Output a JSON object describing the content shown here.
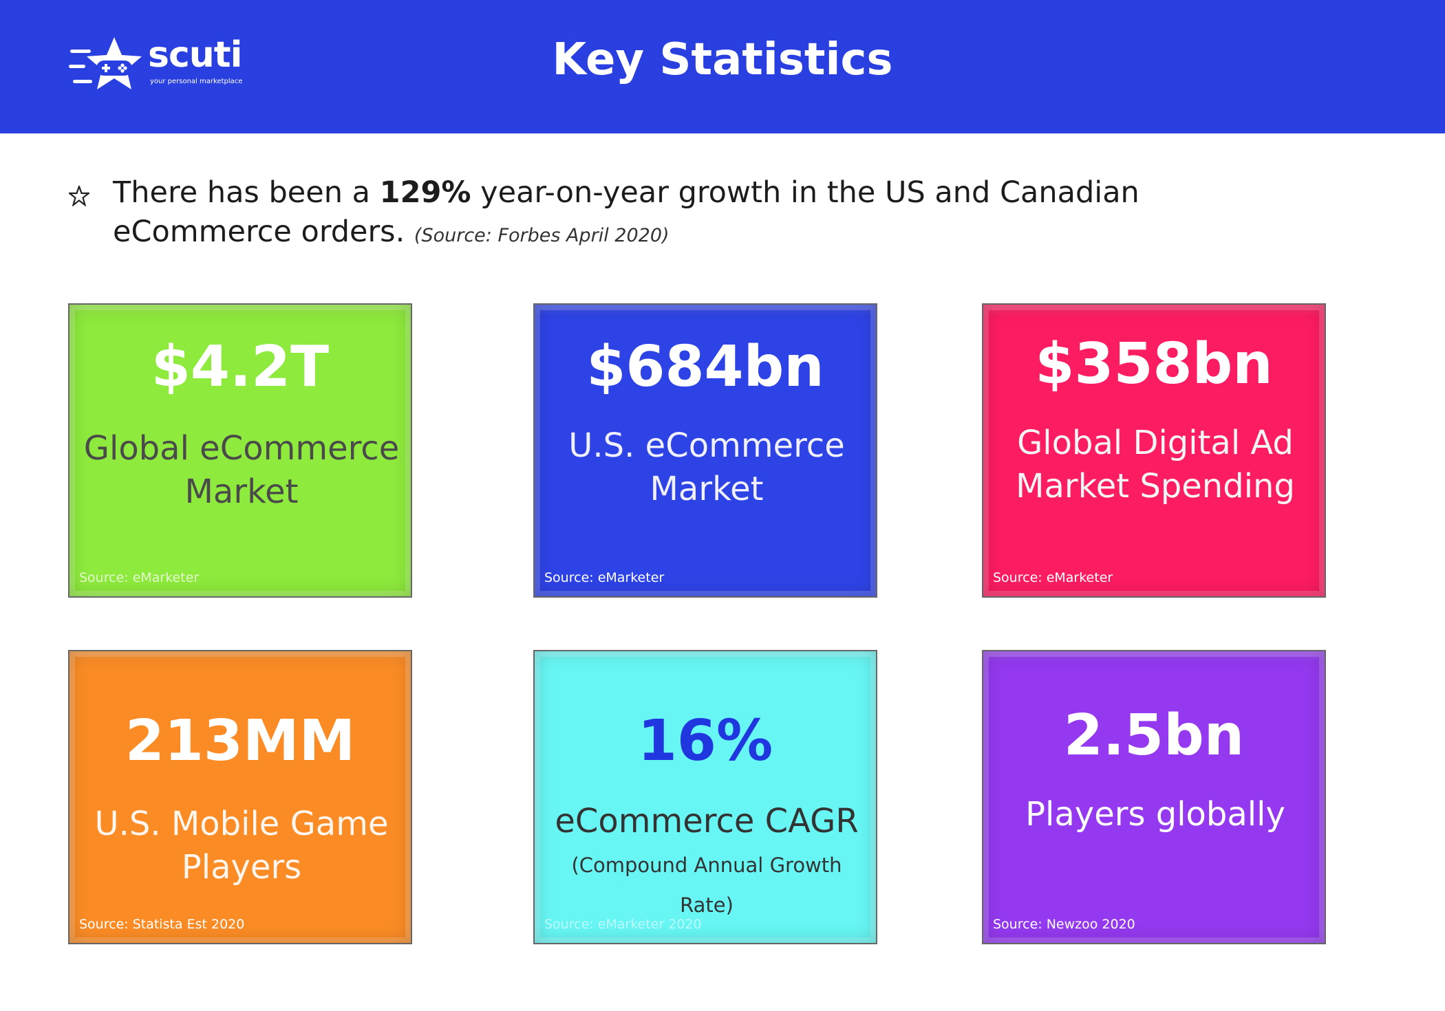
{
  "header": {
    "title": "Key Statistics",
    "logo": {
      "wordmark": "scuti",
      "tagline": "your personal marketplace",
      "icon": "star-gamepad-icon"
    },
    "background_color": "#2a3fdf"
  },
  "statement": {
    "bullet_icon": "star-bullet-icon",
    "text_before": "There has been a ",
    "highlight": "129%",
    "text_after": " year-on-year growth in the US and Canadian eCommerce orders.",
    "source": "(Source: Forbes April 2020)"
  },
  "cards": [
    {
      "value": "$4.2T",
      "label": "Global eCommerce Market",
      "source": "Source: eMarketer",
      "color": "#8eea3c"
    },
    {
      "value": "$684bn",
      "label": "U.S. eCommerce Market",
      "source": "Source: eMarketer",
      "color": "#2e43e6"
    },
    {
      "value": "$358bn",
      "label": "Global Digital Ad Market Spending",
      "source": "Source: eMarketer",
      "color": "#fc1c61"
    },
    {
      "value": "213MM",
      "label": "U.S. Mobile Game Players",
      "source": "Source: Statista Est 2020",
      "color": "#fb8c25"
    },
    {
      "value": "16%",
      "label_main": "eCommerce CAGR",
      "label_small": "(Compound Annual Growth Rate)",
      "source": "Source: eMarketer 2020",
      "color": "#67f6f4"
    },
    {
      "value": "2.5bn",
      "label": "Players globally",
      "source": "Source: Newzoo 2020",
      "color": "#9439ef"
    }
  ]
}
